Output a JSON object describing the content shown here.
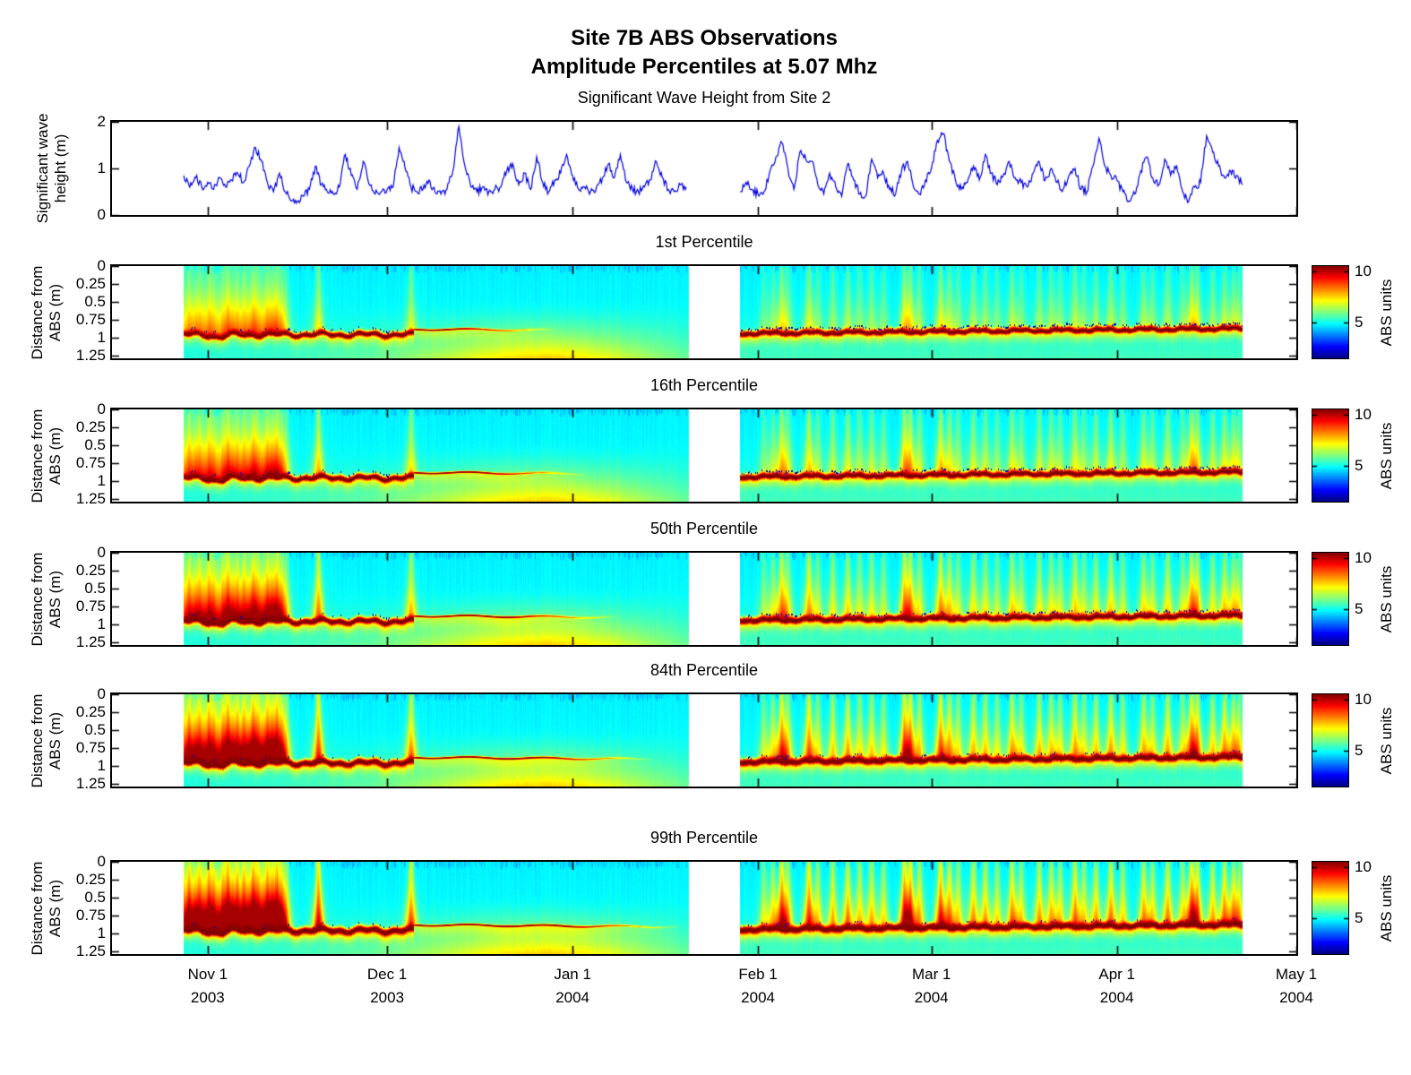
{
  "figure": {
    "title_line1": "Site 7B ABS Observations",
    "title_line2": "Amplitude Percentiles at 5.07 Mhz",
    "background": "#ffffff"
  },
  "chart_data": {
    "type": "multi-panel",
    "x_axis": {
      "axis_start_date": "2003-10-16",
      "axis_end_date": "2004-05-01",
      "range_days": 198,
      "data_blocks_days": [
        [
          12,
          96.5
        ],
        [
          105,
          189
        ]
      ],
      "ticks": [
        {
          "day": 16,
          "line1": "Nov 1",
          "line2": "2003"
        },
        {
          "day": 46,
          "line1": "Dec 1",
          "line2": "2003"
        },
        {
          "day": 77,
          "line1": "Jan 1",
          "line2": "2004"
        },
        {
          "day": 108,
          "line1": "Feb 1",
          "line2": "2004"
        },
        {
          "day": 137,
          "line1": "Mar 1",
          "line2": "2004"
        },
        {
          "day": 168,
          "line1": "Apr 1",
          "line2": "2004"
        },
        {
          "day": 198,
          "line1": "May 1",
          "line2": "2004"
        }
      ]
    },
    "colorbar": {
      "label": "ABS units",
      "ticks": [
        10,
        5
      ],
      "range": [
        1.5,
        10.5
      ],
      "colormap": "jet"
    },
    "panels": [
      {
        "type": "line",
        "title": "Significant Wave Height from Site 2",
        "ylabel": "Significant wave\nheight (m)",
        "ylim": [
          0,
          2
        ],
        "yticks": [
          2,
          1,
          0
        ],
        "line_color": "#0000DD",
        "series_day_height": [
          [
            12,
            0.85
          ],
          [
            13,
            0.6
          ],
          [
            14,
            0.8
          ],
          [
            15,
            0.6
          ],
          [
            16,
            0.7
          ],
          [
            17,
            0.55
          ],
          [
            18,
            0.8
          ],
          [
            19,
            0.6
          ],
          [
            20,
            0.75
          ],
          [
            21,
            0.9
          ],
          [
            22,
            0.7
          ],
          [
            23,
            1.05
          ],
          [
            24,
            1.45
          ],
          [
            25,
            1.15
          ],
          [
            26,
            0.7
          ],
          [
            27,
            0.5
          ],
          [
            28,
            0.9
          ],
          [
            29,
            0.5
          ],
          [
            30,
            0.3
          ],
          [
            31,
            0.3
          ],
          [
            32,
            0.4
          ],
          [
            33,
            0.55
          ],
          [
            34,
            1.05
          ],
          [
            35,
            0.65
          ],
          [
            36,
            0.5
          ],
          [
            37,
            0.45
          ],
          [
            38,
            0.6
          ],
          [
            39,
            1.3
          ],
          [
            40,
            0.85
          ],
          [
            41,
            0.55
          ],
          [
            42,
            1.15
          ],
          [
            43,
            0.65
          ],
          [
            44,
            0.45
          ],
          [
            45,
            0.5
          ],
          [
            46,
            0.55
          ],
          [
            47,
            0.6
          ],
          [
            48,
            1.45
          ],
          [
            49,
            1.0
          ],
          [
            50,
            0.6
          ],
          [
            51,
            0.5
          ],
          [
            52,
            0.55
          ],
          [
            53,
            0.75
          ],
          [
            54,
            0.5
          ],
          [
            55,
            0.45
          ],
          [
            56,
            0.55
          ],
          [
            57,
            0.95
          ],
          [
            58,
            1.9
          ],
          [
            59,
            1.05
          ],
          [
            60,
            0.6
          ],
          [
            61,
            0.5
          ],
          [
            62,
            0.6
          ],
          [
            63,
            0.5
          ],
          [
            64,
            0.55
          ],
          [
            65,
            0.6
          ],
          [
            66,
            0.95
          ],
          [
            67,
            1.1
          ],
          [
            68,
            0.65
          ],
          [
            69,
            0.9
          ],
          [
            70,
            0.55
          ],
          [
            71,
            1.25
          ],
          [
            72,
            0.7
          ],
          [
            73,
            0.5
          ],
          [
            74,
            0.75
          ],
          [
            75,
            0.9
          ],
          [
            76,
            1.3
          ],
          [
            77,
            0.85
          ],
          [
            78,
            0.55
          ],
          [
            79,
            0.6
          ],
          [
            80,
            0.5
          ],
          [
            81,
            0.6
          ],
          [
            82,
            0.8
          ],
          [
            83,
            1.1
          ],
          [
            84,
            0.8
          ],
          [
            85,
            1.3
          ],
          [
            86,
            0.7
          ],
          [
            87,
            0.55
          ],
          [
            88,
            0.5
          ],
          [
            89,
            0.6
          ],
          [
            90,
            0.75
          ],
          [
            91,
            1.15
          ],
          [
            92,
            0.8
          ],
          [
            93,
            0.55
          ],
          [
            94,
            0.5
          ],
          [
            95,
            0.65
          ],
          [
            96,
            0.6
          ],
          [
            105,
            0.5
          ],
          [
            106,
            0.7
          ],
          [
            107,
            0.55
          ],
          [
            108,
            0.45
          ],
          [
            109,
            0.5
          ],
          [
            110,
            0.95
          ],
          [
            111,
            1.25
          ],
          [
            112,
            1.55
          ],
          [
            113,
            1.0
          ],
          [
            114,
            0.55
          ],
          [
            115,
            1.35
          ],
          [
            116,
            1.2
          ],
          [
            117,
            1.15
          ],
          [
            118,
            0.65
          ],
          [
            119,
            0.45
          ],
          [
            120,
            0.9
          ],
          [
            121,
            0.6
          ],
          [
            122,
            0.4
          ],
          [
            123,
            1.1
          ],
          [
            124,
            0.75
          ],
          [
            125,
            0.45
          ],
          [
            126,
            0.4
          ],
          [
            127,
            1.2
          ],
          [
            128,
            0.8
          ],
          [
            129,
            0.9
          ],
          [
            130,
            0.55
          ],
          [
            131,
            0.45
          ],
          [
            132,
            0.95
          ],
          [
            133,
            1.15
          ],
          [
            134,
            0.6
          ],
          [
            135,
            0.45
          ],
          [
            136,
            0.75
          ],
          [
            137,
            1.0
          ],
          [
            138,
            1.6
          ],
          [
            139,
            1.75
          ],
          [
            140,
            1.15
          ],
          [
            141,
            0.75
          ],
          [
            142,
            0.55
          ],
          [
            143,
            0.7
          ],
          [
            144,
            1.05
          ],
          [
            145,
            0.75
          ],
          [
            146,
            1.3
          ],
          [
            147,
            0.9
          ],
          [
            148,
            0.65
          ],
          [
            149,
            0.85
          ],
          [
            150,
            1.15
          ],
          [
            151,
            0.8
          ],
          [
            152,
            0.7
          ],
          [
            153,
            0.6
          ],
          [
            154,
            0.9
          ],
          [
            155,
            1.15
          ],
          [
            156,
            0.75
          ],
          [
            157,
            1.0
          ],
          [
            158,
            0.7
          ],
          [
            159,
            0.55
          ],
          [
            160,
            0.85
          ],
          [
            161,
            1.0
          ],
          [
            162,
            0.55
          ],
          [
            163,
            0.5
          ],
          [
            164,
            1.05
          ],
          [
            165,
            1.65
          ],
          [
            166,
            1.05
          ],
          [
            167,
            0.85
          ],
          [
            168,
            0.75
          ],
          [
            169,
            0.5
          ],
          [
            170,
            0.3
          ],
          [
            171,
            0.45
          ],
          [
            172,
            0.95
          ],
          [
            173,
            1.25
          ],
          [
            174,
            0.8
          ],
          [
            175,
            0.65
          ],
          [
            176,
            1.2
          ],
          [
            177,
            0.85
          ],
          [
            178,
            1.05
          ],
          [
            179,
            0.5
          ],
          [
            180,
            0.3
          ],
          [
            181,
            0.6
          ],
          [
            182,
            0.7
          ],
          [
            183,
            1.7
          ],
          [
            184,
            1.35
          ],
          [
            185,
            1.05
          ],
          [
            186,
            0.8
          ],
          [
            187,
            0.95
          ],
          [
            188,
            0.85
          ],
          [
            189,
            0.65
          ]
        ]
      },
      {
        "type": "heatmap",
        "title": "1st Percentile",
        "ylabel": "Distance from\nABS (m)",
        "ylim": [
          0,
          1.288
        ],
        "yticks": [
          0,
          0.25,
          0.5,
          0.75,
          1,
          1.25
        ],
        "intensity": 0.45
      },
      {
        "type": "heatmap",
        "title": "16th Percentile",
        "ylabel": "Distance from\nABS (m)",
        "ylim": [
          0,
          1.288
        ],
        "yticks": [
          0,
          0.25,
          0.5,
          0.75,
          1,
          1.25
        ],
        "intensity": 0.58
      },
      {
        "type": "heatmap",
        "title": "50th Percentile",
        "ylabel": "Distance from\nABS (m)",
        "ylim": [
          0,
          1.288
        ],
        "yticks": [
          0,
          0.25,
          0.5,
          0.75,
          1,
          1.25
        ],
        "intensity": 0.72
      },
      {
        "type": "heatmap",
        "title": "84th Percentile",
        "ylabel": "Distance from\nABS (m)",
        "ylim": [
          0,
          1.288
        ],
        "yticks": [
          0,
          0.25,
          0.5,
          0.75,
          1,
          1.25
        ],
        "intensity": 0.88
      },
      {
        "type": "heatmap",
        "title": "99th Percentile",
        "ylabel": "Distance from\nABS (m)",
        "ylim": [
          0,
          1.288
        ],
        "yticks": [
          0,
          0.25,
          0.5,
          0.75,
          1,
          1.25
        ],
        "intensity": 1.0
      }
    ],
    "heatmap_model": {
      "background_value": 4.78,
      "band_value": 10.5,
      "band_depth_block1_m": 0.95,
      "band_solid_until_day": 50.5,
      "thin_line_depth_m": 0.88,
      "band_depth_block2_start_m": 0.935,
      "band_depth_block2_end_m": 0.87,
      "events_day_strength": [
        [
          12,
          0.7
        ],
        [
          12.9,
          0.9
        ],
        [
          13.8,
          0.6
        ],
        [
          14.6,
          0.85
        ],
        [
          15.4,
          0.55
        ],
        [
          16.2,
          0.9
        ],
        [
          17,
          0.75
        ],
        [
          17.8,
          0.5
        ],
        [
          18.6,
          0.8
        ],
        [
          19.4,
          0.95
        ],
        [
          20.2,
          0.6
        ],
        [
          21,
          0.85
        ],
        [
          22,
          0.9
        ],
        [
          22.8,
          0.55
        ],
        [
          23.6,
          1.0
        ],
        [
          24.4,
          0.8
        ],
        [
          25.2,
          0.6
        ],
        [
          26,
          0.9
        ],
        [
          26.8,
          0.75
        ],
        [
          27.6,
          0.95
        ],
        [
          28.4,
          0.7
        ],
        [
          29.2,
          0.5
        ],
        [
          34.5,
          0.95
        ],
        [
          50,
          0.75
        ],
        [
          109,
          0.4
        ],
        [
          110.5,
          0.5
        ],
        [
          112,
          0.9
        ],
        [
          113,
          0.55
        ],
        [
          116.5,
          0.85
        ],
        [
          118,
          0.5
        ],
        [
          120.5,
          0.6
        ],
        [
          123,
          0.7
        ],
        [
          125,
          0.55
        ],
        [
          127,
          0.6
        ],
        [
          129,
          0.5
        ],
        [
          132.5,
          0.9
        ],
        [
          133.5,
          0.85
        ],
        [
          135,
          0.6
        ],
        [
          138.5,
          0.9
        ],
        [
          140,
          0.7
        ],
        [
          141.5,
          0.5
        ],
        [
          144,
          0.65
        ],
        [
          146,
          0.6
        ],
        [
          148,
          0.5
        ],
        [
          150.5,
          0.7
        ],
        [
          152,
          0.5
        ],
        [
          155,
          0.65
        ],
        [
          157,
          0.6
        ],
        [
          158.5,
          0.5
        ],
        [
          161,
          0.7
        ],
        [
          162.5,
          0.5
        ],
        [
          164.5,
          0.6
        ],
        [
          167,
          0.7
        ],
        [
          169,
          0.5
        ],
        [
          172.5,
          0.65
        ],
        [
          174,
          0.5
        ],
        [
          176.5,
          0.7
        ],
        [
          179,
          0.5
        ],
        [
          180.5,
          0.85
        ],
        [
          181.5,
          0.7
        ],
        [
          184,
          0.6
        ],
        [
          186,
          0.7
        ],
        [
          187.5,
          0.6
        ],
        [
          188.5,
          0.5
        ]
      ]
    }
  }
}
